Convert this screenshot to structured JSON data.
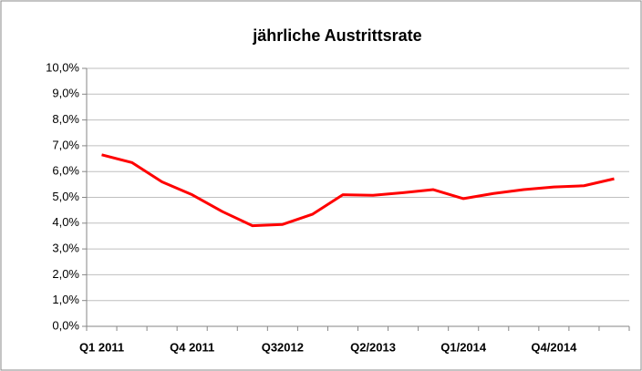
{
  "chart_data": {
    "type": "line",
    "title": "jährliche Austrittsrate",
    "categories": [
      "Q1 2011",
      null,
      null,
      "Q4 2011",
      null,
      null,
      "Q32012",
      null,
      null,
      "Q2/2013",
      null,
      null,
      "Q1/2014",
      null,
      null,
      "Q4/2014",
      null,
      null
    ],
    "series": [
      {
        "name": "Austrittsrate",
        "color": "#ff0000",
        "values": [
          6.65,
          6.35,
          5.6,
          5.1,
          4.45,
          3.9,
          3.95,
          4.35,
          5.1,
          5.08,
          5.18,
          5.3,
          4.95,
          5.15,
          5.3,
          5.4,
          5.45,
          5.72
        ]
      }
    ],
    "ylim": [
      0,
      10
    ],
    "yticks": [
      {
        "value": 0,
        "label": "0,0%"
      },
      {
        "value": 1,
        "label": "1,0%"
      },
      {
        "value": 2,
        "label": "2,0%"
      },
      {
        "value": 3,
        "label": "3,0%"
      },
      {
        "value": 4,
        "label": "4,0%"
      },
      {
        "value": 5,
        "label": "5,0%"
      },
      {
        "value": 6,
        "label": "6,0%"
      },
      {
        "value": 7,
        "label": "7,0%"
      },
      {
        "value": 8,
        "label": "8,0%"
      },
      {
        "value": 9,
        "label": "9,0%"
      },
      {
        "value": 10,
        "label": "10,0%"
      }
    ],
    "grid": true
  }
}
